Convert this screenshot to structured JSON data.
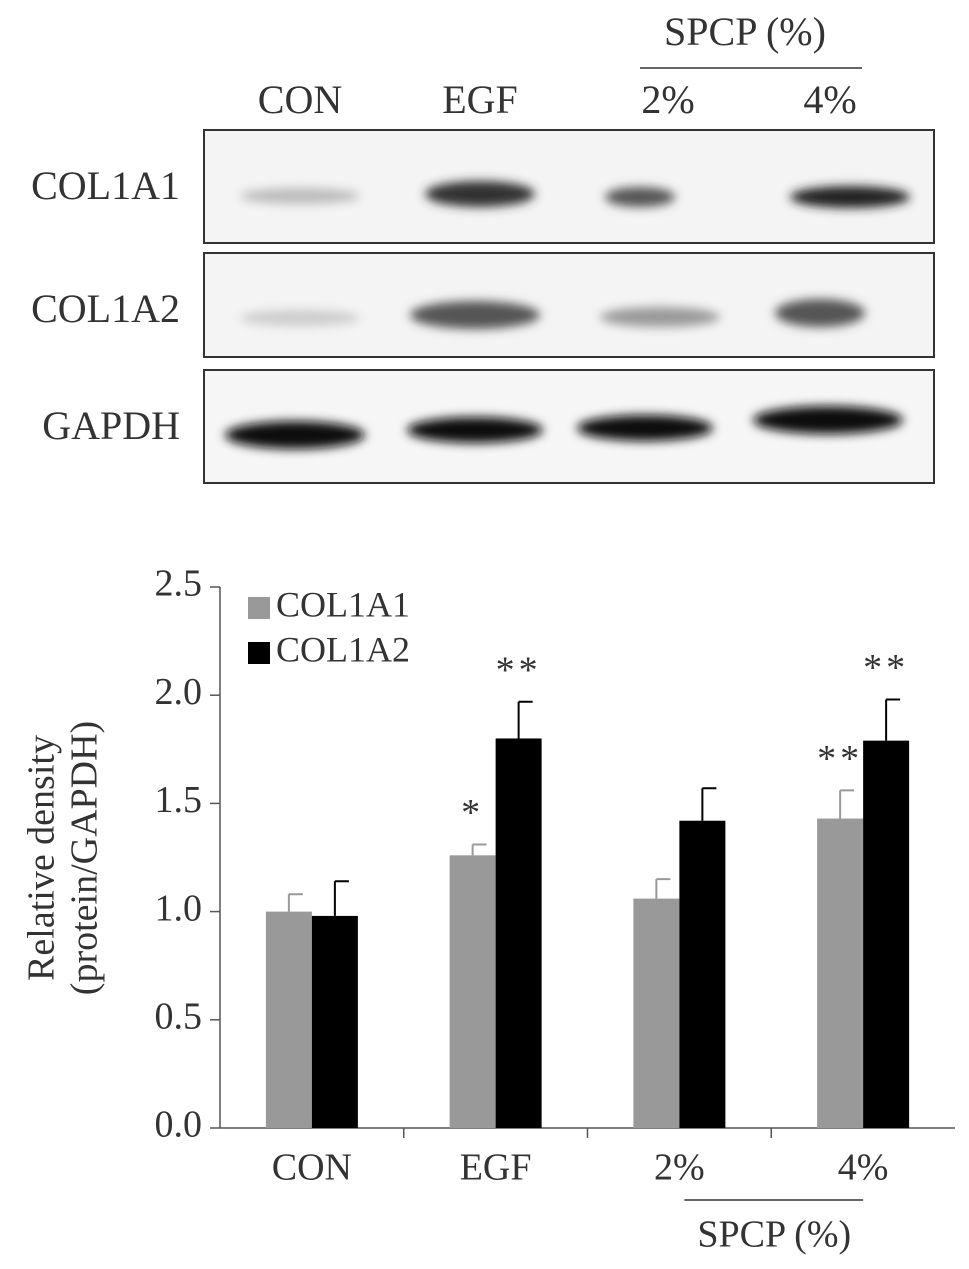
{
  "blot": {
    "lanes": [
      "CON",
      "EGF",
      "2%",
      "4%"
    ],
    "group_label": "SPCP (%)",
    "rows": [
      "COL1A1",
      "COL1A2",
      "GAPDH"
    ]
  },
  "chart_data": {
    "type": "bar",
    "ylabel": [
      "Relative density",
      "(protein/GAPDH)"
    ],
    "categories": [
      "CON",
      "EGF",
      "2%",
      "4%"
    ],
    "group_label": "SPCP (%)",
    "series": [
      {
        "name": "COL1A1",
        "color": "#999999",
        "values": [
          1.0,
          1.26,
          1.06,
          1.43
        ],
        "errors": [
          0.08,
          0.05,
          0.09,
          0.13
        ],
        "annotations": [
          null,
          "*",
          null,
          "**"
        ]
      },
      {
        "name": "COL1A2",
        "color": "#000000",
        "values": [
          0.98,
          1.8,
          1.42,
          1.79
        ],
        "errors": [
          0.16,
          0.17,
          0.15,
          0.19
        ],
        "annotations": [
          null,
          "**",
          null,
          "**"
        ]
      }
    ],
    "ylim": [
      0,
      2.5
    ],
    "yticks": [
      {
        "value": 0,
        "label": "0.0"
      },
      0.5,
      {
        "value": 1,
        "label": "1.0"
      },
      1.5,
      {
        "value": 2,
        "label": "2.0"
      },
      2.5
    ],
    "legend": "upper left"
  }
}
